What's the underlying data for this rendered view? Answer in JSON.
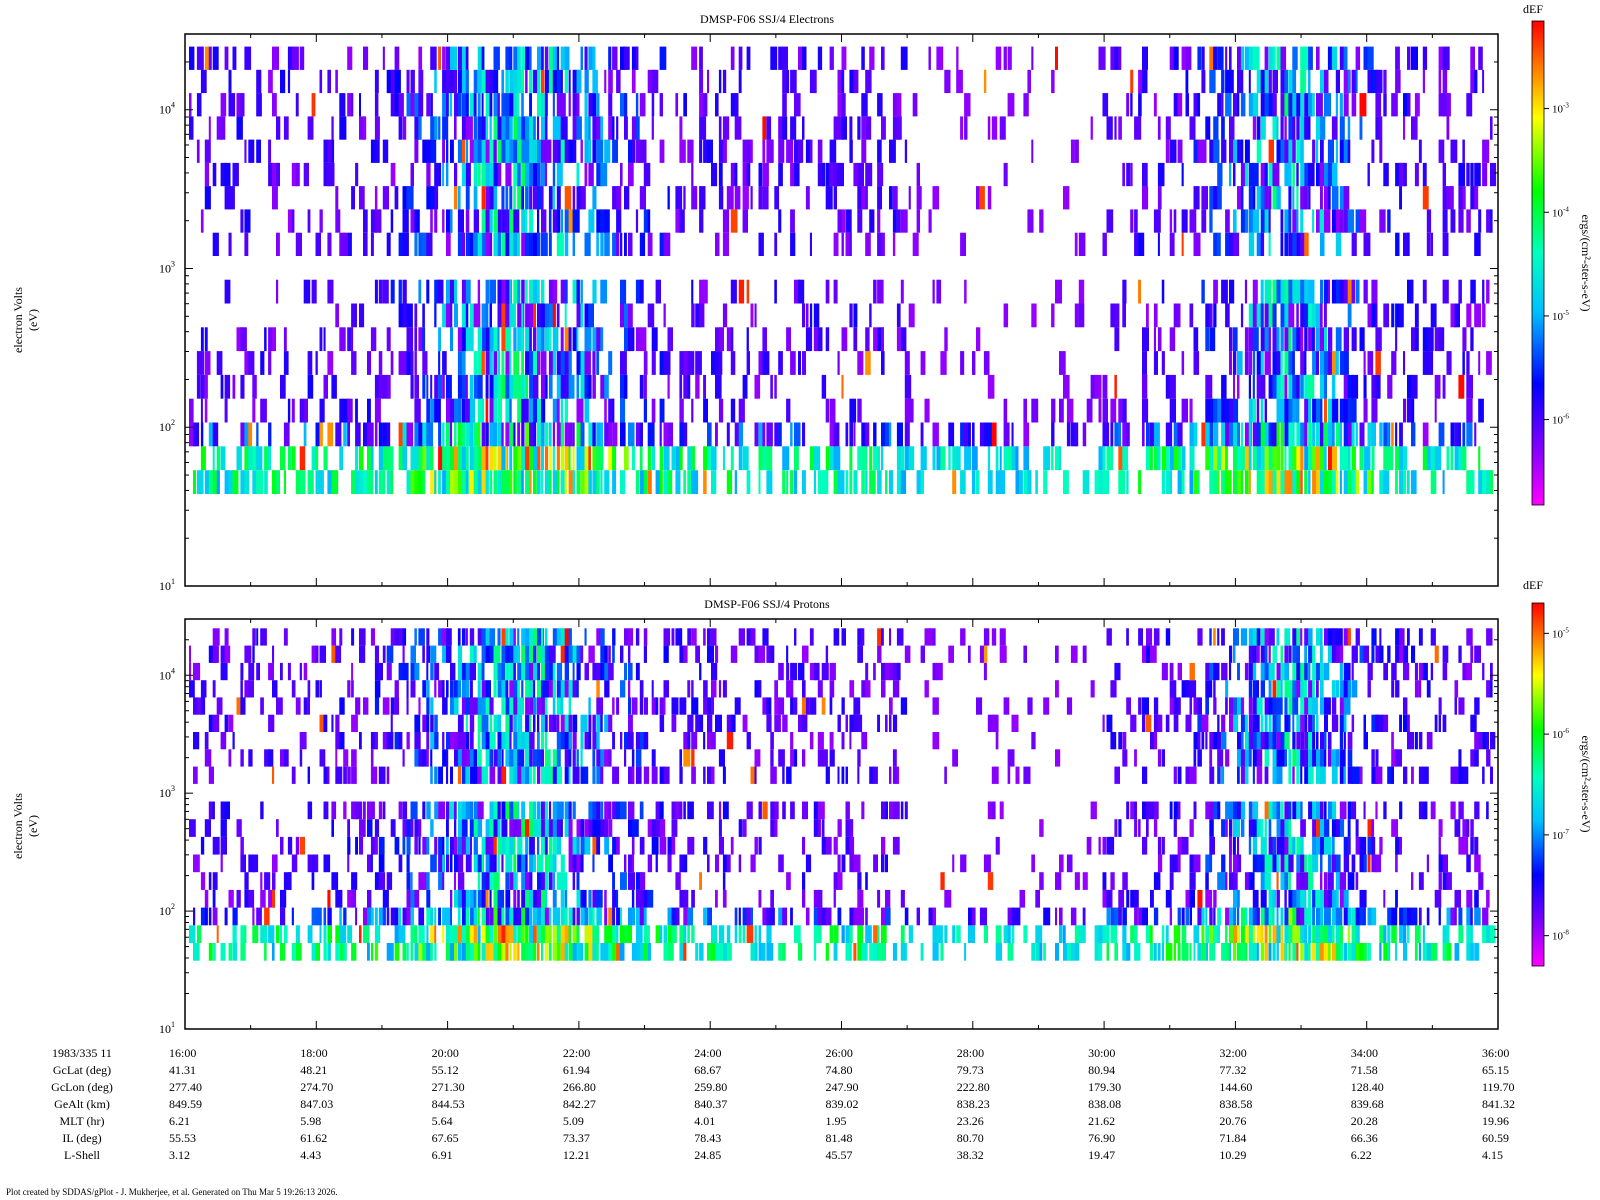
{
  "chart_data": [
    {
      "type": "heatmap",
      "title": "DMSP-F06 SSJ/4 Electrons",
      "ylabel_line1": "electron Volts",
      "ylabel_line2": "(eV)",
      "yscale": "log",
      "ylim": [
        10,
        30000
      ],
      "y_tick_labels": [
        {
          "base": "10",
          "exp": "1",
          "value": 10
        },
        {
          "base": "10",
          "exp": "2",
          "value": 100
        },
        {
          "base": "10",
          "exp": "3",
          "value": 1000
        },
        {
          "base": "10",
          "exp": "4",
          "value": 10000
        }
      ],
      "xlim": [
        16,
        36
      ],
      "energy_channels": [
        {
          "lo": 1200,
          "hi": 25000
        },
        {
          "lo": 38,
          "hi": 850
        }
      ],
      "colorbar": {
        "title": "dEF",
        "label": "ergs/(cm²-ster-s-eV)",
        "scale": "log",
        "range": [
          1.5e-07,
          0.007
        ],
        "tick_labels": [
          {
            "base": "10",
            "exp": "-3",
            "value": 0.001
          },
          {
            "base": "10",
            "exp": "-4",
            "value": 0.0001
          },
          {
            "base": "10",
            "exp": "-5",
            "value": 1e-05
          },
          {
            "base": "10",
            "exp": "-6",
            "value": 1e-06
          }
        ],
        "colors": [
          "#ff00ff",
          "#8000ff",
          "#0000ff",
          "#00c0ff",
          "#00ffc0",
          "#00ff00",
          "#ffff00",
          "#ff8000",
          "#ff0000"
        ]
      }
    },
    {
      "type": "heatmap",
      "title": "DMSP-F06 SSJ/4 Protons",
      "ylabel_line1": "electron Volts",
      "ylabel_line2": "(eV)",
      "yscale": "log",
      "ylim": [
        10,
        30000
      ],
      "y_tick_labels": [
        {
          "base": "10",
          "exp": "1",
          "value": 10
        },
        {
          "base": "10",
          "exp": "2",
          "value": 100
        },
        {
          "base": "10",
          "exp": "3",
          "value": 1000
        },
        {
          "base": "10",
          "exp": "4",
          "value": 10000
        }
      ],
      "xlim": [
        16,
        36
      ],
      "energy_channels": [
        {
          "lo": 1200,
          "hi": 25000
        },
        {
          "lo": 38,
          "hi": 850
        }
      ],
      "colorbar": {
        "title": "dEF",
        "label": "ergs/(cm²-ster-s-eV)",
        "scale": "log",
        "range": [
          5e-09,
          2e-05
        ],
        "tick_labels": [
          {
            "base": "10",
            "exp": "-5",
            "value": 1e-05
          },
          {
            "base": "10",
            "exp": "-6",
            "value": 1e-06
          },
          {
            "base": "10",
            "exp": "-7",
            "value": 1e-07
          },
          {
            "base": "10",
            "exp": "-8",
            "value": 1e-08
          }
        ],
        "colors": [
          "#ff00ff",
          "#8000ff",
          "#0000ff",
          "#00c0ff",
          "#00ffc0",
          "#00ff00",
          "#ffff00",
          "#ff8000",
          "#ff0000"
        ]
      }
    }
  ],
  "ephemeris": {
    "rows": [
      {
        "label": "1983/335 11",
        "values": [
          "16:00",
          "18:00",
          "20:00",
          "22:00",
          "24:00",
          "26:00",
          "28:00",
          "30:00",
          "32:00",
          "34:00",
          "36:00"
        ]
      },
      {
        "label": "GcLat (deg)",
        "values": [
          "41.31",
          "48.21",
          "55.12",
          "61.94",
          "68.67",
          "74.80",
          "79.73",
          "80.94",
          "77.32",
          "71.58",
          "65.15"
        ]
      },
      {
        "label": "GcLon (deg)",
        "values": [
          "277.40",
          "274.70",
          "271.30",
          "266.80",
          "259.80",
          "247.90",
          "222.80",
          "179.30",
          "144.60",
          "128.40",
          "119.70"
        ]
      },
      {
        "label": "GeAlt (km)",
        "values": [
          "849.59",
          "847.03",
          "844.53",
          "842.27",
          "840.37",
          "839.02",
          "838.23",
          "838.08",
          "838.58",
          "839.68",
          "841.32"
        ]
      },
      {
        "label": "MLT (hr)",
        "values": [
          "6.21",
          "5.98",
          "5.64",
          "5.09",
          "4.01",
          "1.95",
          "23.26",
          "21.62",
          "20.76",
          "20.28",
          "19.96"
        ]
      },
      {
        "label": "IL (deg)",
        "values": [
          "55.53",
          "61.62",
          "67.65",
          "73.37",
          "78.43",
          "81.48",
          "80.70",
          "76.90",
          "71.84",
          "66.36",
          "60.59"
        ]
      },
      {
        "label": "L-Shell",
        "values": [
          "3.12",
          "4.43",
          "6.91",
          "12.21",
          "24.85",
          "45.57",
          "38.32",
          "19.47",
          "10.29",
          "6.22",
          "4.15"
        ]
      }
    ]
  },
  "footer": {
    "credit": "Plot created by SDDAS/gPlot - J. Mukherjee, et al.  Generated on Thu Mar 5 19:26:13 2026."
  }
}
